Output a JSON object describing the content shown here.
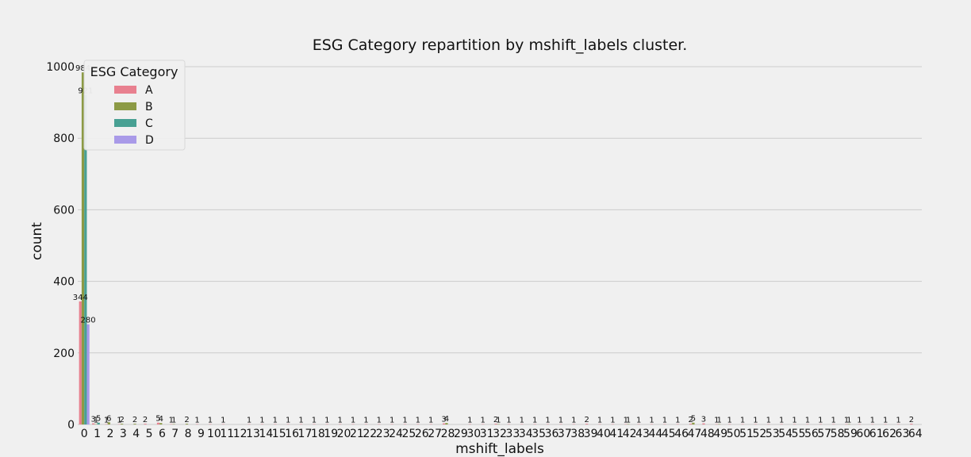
{
  "chart_data": {
    "type": "bar",
    "title": "ESG Category repartition by mshift_labels cluster.",
    "xlabel": "mshift_labels",
    "ylabel": "count",
    "ylim": [
      0,
      1000
    ],
    "yticks": [
      0,
      200,
      400,
      600,
      800,
      1000
    ],
    "grid": true,
    "categories": [
      "0",
      "1",
      "2",
      "3",
      "4",
      "5",
      "6",
      "7",
      "8",
      "9",
      "10",
      "11",
      "12",
      "13",
      "14",
      "15",
      "16",
      "17",
      "18",
      "19",
      "20",
      "21",
      "22",
      "23",
      "24",
      "25",
      "26",
      "27",
      "28",
      "29",
      "30",
      "31",
      "32",
      "33",
      "34",
      "35",
      "36",
      "37",
      "38",
      "39",
      "40",
      "41",
      "42",
      "43",
      "44",
      "45",
      "46",
      "47",
      "48",
      "49",
      "50",
      "51",
      "52",
      "53",
      "54",
      "55",
      "56",
      "57",
      "58",
      "59",
      "60",
      "61",
      "62",
      "63",
      "64"
    ],
    "legend": {
      "title": "ESG Category",
      "position": "top-left"
    },
    "series": [
      {
        "name": "A",
        "color": "#e8808f",
        "values": [
          344,
          3,
          1,
          1,
          0,
          2,
          5,
          1,
          0,
          1,
          1,
          1,
          0,
          1,
          1,
          1,
          1,
          1,
          1,
          1,
          1,
          1,
          1,
          1,
          1,
          1,
          1,
          1,
          3,
          0,
          1,
          1,
          2,
          1,
          1,
          1,
          1,
          1,
          1,
          2,
          1,
          1,
          1,
          1,
          1,
          1,
          1,
          2,
          3,
          1,
          1,
          1,
          1,
          1,
          1,
          1,
          1,
          1,
          1,
          1,
          1,
          1,
          1,
          1,
          2
        ]
      },
      {
        "name": "B",
        "color": "#8c9a45",
        "values": [
          984,
          1,
          6,
          2,
          2,
          0,
          4,
          1,
          2,
          0,
          0,
          0,
          0,
          0,
          0,
          0,
          0,
          0,
          0,
          0,
          0,
          0,
          0,
          0,
          0,
          0,
          0,
          0,
          4,
          0,
          0,
          0,
          1,
          0,
          0,
          0,
          0,
          0,
          0,
          0,
          0,
          0,
          1,
          0,
          0,
          0,
          0,
          5,
          0,
          1,
          0,
          0,
          0,
          0,
          0,
          0,
          0,
          0,
          0,
          1,
          0,
          0,
          0,
          0,
          0
        ]
      },
      {
        "name": "C",
        "color": "#48a093",
        "values": [
          921,
          5,
          0,
          0,
          0,
          0,
          0,
          0,
          0,
          0,
          0,
          0,
          0,
          0,
          0,
          0,
          0,
          0,
          0,
          0,
          0,
          0,
          0,
          0,
          0,
          0,
          0,
          0,
          0,
          0,
          0,
          0,
          0,
          0,
          0,
          0,
          0,
          0,
          0,
          0,
          0,
          0,
          0,
          0,
          0,
          0,
          0,
          0,
          0,
          0,
          0,
          0,
          0,
          0,
          0,
          0,
          0,
          0,
          0,
          0,
          0,
          0,
          0,
          0,
          0
        ]
      },
      {
        "name": "D",
        "color": "#a99ae8",
        "values": [
          280,
          0,
          0,
          0,
          0,
          0,
          0,
          0,
          0,
          0,
          0,
          0,
          0,
          0,
          0,
          0,
          0,
          0,
          0,
          0,
          0,
          0,
          0,
          0,
          0,
          0,
          0,
          0,
          0,
          0,
          0,
          0,
          0,
          0,
          0,
          0,
          0,
          0,
          0,
          0,
          0,
          0,
          0,
          0,
          0,
          0,
          0,
          0,
          0,
          0,
          0,
          0,
          0,
          0,
          0,
          0,
          0,
          0,
          0,
          0,
          0,
          0,
          0,
          0,
          0
        ]
      }
    ]
  }
}
